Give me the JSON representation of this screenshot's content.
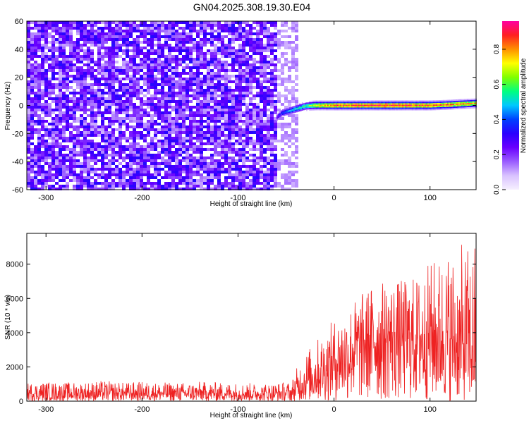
{
  "title": "GN04.2025.308.19.30.E04",
  "colormap": [
    "#f6f0ff",
    "#d9c2ff",
    "#9a5cff",
    "#6a00ff",
    "#2a00ff",
    "#0040ff",
    "#00c8ff",
    "#00ff80",
    "#80ff00",
    "#ffff00",
    "#ff9000",
    "#ff2020",
    "#ff00a0"
  ],
  "chart_data": [
    {
      "type": "heatmap",
      "xlabel": "Height of straight line (km)",
      "ylabel": "Frequency (Hz)",
      "xlim": [
        -320,
        148
      ],
      "ylim": [
        -60,
        60
      ],
      "xticks": [
        -300,
        -200,
        -100,
        0,
        100
      ],
      "yticks": [
        -60,
        -40,
        -20,
        0,
        20,
        40,
        60
      ],
      "colorbar": {
        "label": "Normalized spectral amplitude",
        "range": [
          0,
          0.96
        ],
        "ticks": [
          0.0,
          0.2,
          0.4,
          0.6,
          0.8
        ]
      },
      "noise_region": {
        "x_from": -320,
        "x_to": -40
      },
      "signal_ridge": {
        "x": [
          -60,
          -55,
          -50,
          -45,
          -40,
          -30,
          -20,
          0,
          20,
          40,
          60,
          80,
          100,
          120,
          148
        ],
        "freq": [
          -8,
          -5,
          -4,
          -3,
          -2,
          0,
          0.5,
          0.5,
          0.5,
          0.5,
          0.5,
          0.5,
          0.5,
          1,
          2
        ],
        "amplitude": [
          0.3,
          0.4,
          0.45,
          0.5,
          0.55,
          0.6,
          0.75,
          0.9,
          0.92,
          0.95,
          0.95,
          0.92,
          0.9,
          0.85,
          0.8
        ]
      }
    },
    {
      "type": "line",
      "xlabel": "Height of straight line (km)",
      "ylabel": "SNR (10 * v/v)",
      "xlim": [
        -320,
        148
      ],
      "ylim": [
        0,
        9800
      ],
      "xticks": [
        -300,
        -200,
        -100,
        0,
        100
      ],
      "yticks": [
        0,
        2000,
        4000,
        6000,
        8000
      ],
      "color": "#ee2222",
      "series": [
        {
          "x": [
            -320,
            -300,
            -280,
            -260,
            -240,
            -220,
            -200,
            -180,
            -160,
            -140,
            -120,
            -100,
            -80,
            -60,
            -45,
            -40,
            -35,
            -30,
            -20,
            -10,
            0,
            10,
            20,
            30,
            40,
            50,
            60,
            70,
            80,
            90,
            100,
            110,
            120,
            130,
            140,
            148
          ],
          "mean": [
            450,
            480,
            460,
            470,
            500,
            460,
            480,
            470,
            460,
            480,
            470,
            460,
            450,
            470,
            480,
            700,
            1000,
            1200,
            1600,
            2000,
            2400,
            2800,
            3200,
            3500,
            3800,
            3900,
            4000,
            4000,
            3900,
            3800,
            3900,
            3900,
            3700,
            3300,
            3000,
            2800
          ],
          "upper": [
            1100,
            1150,
            1100,
            1150,
            1200,
            1100,
            1150,
            1100,
            1100,
            1150,
            1100,
            1100,
            1050,
            1100,
            1150,
            1800,
            2500,
            2900,
            3500,
            4200,
            4800,
            5400,
            6000,
            6400,
            6900,
            7000,
            7200,
            7100,
            7300,
            7500,
            8200,
            8600,
            9000,
            9100,
            9200,
            9700
          ]
        }
      ]
    }
  ]
}
